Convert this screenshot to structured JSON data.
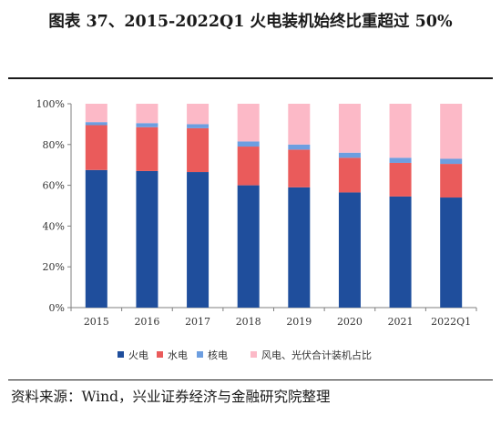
{
  "title": "图表 37、2015-2022Q1 火电装机始终比重超过 50%",
  "source": "资料来源：Wind，兴业证券经济与金融研究院整理",
  "chart_data": {
    "type": "bar",
    "stacked": true,
    "percent": true,
    "categories": [
      "2015",
      "2016",
      "2017",
      "2018",
      "2019",
      "2020",
      "2021",
      "2022Q1"
    ],
    "ylim": [
      0,
      100
    ],
    "yticks": [
      0,
      20,
      40,
      60,
      80,
      100
    ],
    "ytick_labels": [
      "0%",
      "20%",
      "40%",
      "60%",
      "80%",
      "100%"
    ],
    "legend_position": "bottom",
    "series": [
      {
        "name": "火电",
        "color": "#1f4e9c",
        "values": [
          67.5,
          67,
          66.5,
          60,
          59,
          56.5,
          54.5,
          54
        ]
      },
      {
        "name": "水电",
        "color": "#ea5b5b",
        "values": [
          22,
          21.5,
          21.5,
          19,
          18.5,
          17,
          16.5,
          16.5
        ]
      },
      {
        "name": "核电",
        "color": "#6d9ee0",
        "values": [
          1.5,
          2,
          2,
          2.5,
          2.5,
          2.5,
          2.5,
          2.5
        ]
      },
      {
        "name": "风电、光伏合计装机占比",
        "color": "#fcb9c7",
        "values": [
          9,
          9.5,
          10,
          18.5,
          20,
          24,
          26.5,
          27
        ]
      }
    ]
  }
}
